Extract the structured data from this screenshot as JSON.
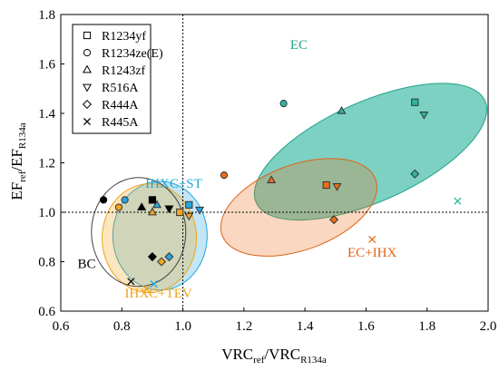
{
  "chart_data": {
    "type": "scatter",
    "xlabel": {
      "main": "VRC",
      "sub1": "ref",
      "mid": "/VRC",
      "sub2": "R134a"
    },
    "ylabel": {
      "main": "EF",
      "sub1": "ref",
      "mid": "/EF",
      "sub2": "R134a"
    },
    "xlim": [
      0.6,
      2.0
    ],
    "ylim": [
      0.6,
      1.8
    ],
    "xticks": [
      "0.6",
      "0.8",
      "1.0",
      "1.2",
      "1.4",
      "1.6",
      "1.8",
      "2.0"
    ],
    "yticks": [
      "0.6",
      "0.8",
      "1.0",
      "1.2",
      "1.4",
      "1.6",
      "1.8"
    ],
    "reference_lines": {
      "x": 1.0,
      "y": 1.0
    },
    "legend_position": "top-left",
    "series": [
      {
        "name": "R1234yf",
        "marker": "square"
      },
      {
        "name": "R1234ze(E)",
        "marker": "circle"
      },
      {
        "name": "R1243zf",
        "marker": "triangle-up"
      },
      {
        "name": "R516A",
        "marker": "triangle-down"
      },
      {
        "name": "R444A",
        "marker": "diamond"
      },
      {
        "name": "R445A",
        "marker": "x"
      }
    ],
    "groups": [
      {
        "name": "EC",
        "color": "#20a38a",
        "fill": "#2db59d",
        "points": [
          {
            "series": 0,
            "x": 1.76,
            "y": 1.445
          },
          {
            "series": 1,
            "x": 1.33,
            "y": 1.44
          },
          {
            "series": 2,
            "x": 1.52,
            "y": 1.41
          },
          {
            "series": 3,
            "x": 1.79,
            "y": 1.395
          },
          {
            "series": 4,
            "x": 1.76,
            "y": 1.155
          },
          {
            "series": 5,
            "x": 1.9,
            "y": 1.045
          }
        ]
      },
      {
        "name": "EC+IHX",
        "color": "#e0631a",
        "fill": "#e86e1c",
        "points": [
          {
            "series": 0,
            "x": 1.47,
            "y": 1.11
          },
          {
            "series": 1,
            "x": 1.135,
            "y": 1.15
          },
          {
            "series": 2,
            "x": 1.29,
            "y": 1.13
          },
          {
            "series": 3,
            "x": 1.505,
            "y": 1.105
          },
          {
            "series": 4,
            "x": 1.495,
            "y": 0.97
          },
          {
            "series": 5,
            "x": 1.62,
            "y": 0.89
          }
        ]
      },
      {
        "name": "IHXC+ST",
        "color": "#1da7dc",
        "fill": "#27a6de",
        "points": [
          {
            "series": 0,
            "x": 1.02,
            "y": 1.03
          },
          {
            "series": 1,
            "x": 0.81,
            "y": 1.05
          },
          {
            "series": 2,
            "x": 0.915,
            "y": 1.03
          },
          {
            "series": 3,
            "x": 1.055,
            "y": 1.01
          },
          {
            "series": 4,
            "x": 0.955,
            "y": 0.82
          },
          {
            "series": 5,
            "x": 0.905,
            "y": 0.71
          }
        ]
      },
      {
        "name": "IHXC+TEV",
        "color": "#f0a418",
        "fill": "#f3a51d",
        "points": [
          {
            "series": 0,
            "x": 0.99,
            "y": 1.0
          },
          {
            "series": 1,
            "x": 0.79,
            "y": 1.02
          },
          {
            "series": 2,
            "x": 0.9,
            "y": 1.0
          },
          {
            "series": 3,
            "x": 1.02,
            "y": 0.985
          },
          {
            "series": 4,
            "x": 0.93,
            "y": 0.8
          },
          {
            "series": 5,
            "x": 0.88,
            "y": 0.69
          }
        ]
      },
      {
        "name": "BC",
        "color": "#404040",
        "fill": "#000000",
        "points": [
          {
            "series": 0,
            "x": 0.9,
            "y": 1.05
          },
          {
            "series": 1,
            "x": 0.74,
            "y": 1.05
          },
          {
            "series": 2,
            "x": 0.865,
            "y": 1.02
          },
          {
            "series": 3,
            "x": 0.955,
            "y": 1.015
          },
          {
            "series": 4,
            "x": 0.9,
            "y": 0.82
          },
          {
            "series": 5,
            "x": 0.83,
            "y": 0.72
          }
        ]
      }
    ]
  }
}
